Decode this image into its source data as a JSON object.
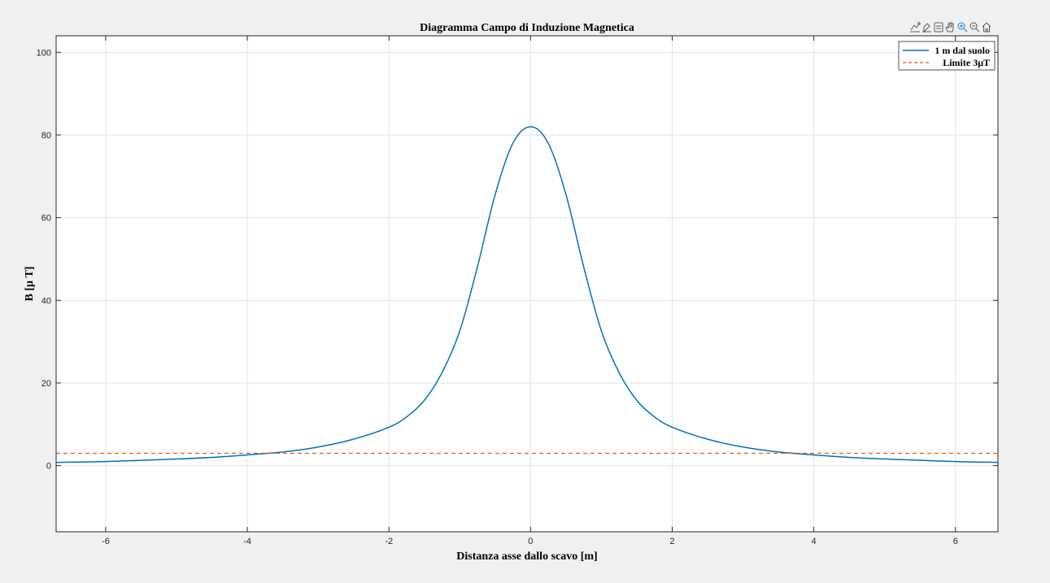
{
  "chart_data": {
    "type": "line",
    "title": "Diagramma Campo di Induzione Magnetica",
    "xlabel": "Distanza asse dallo scavo [m]",
    "ylabel": "B [μ T]",
    "xlim": [
      -6.7,
      6.6
    ],
    "ylim": [
      -16,
      104
    ],
    "xticks": [
      -6,
      -4,
      -2,
      0,
      2,
      4,
      6
    ],
    "yticks": [
      0,
      20,
      40,
      60,
      80,
      100
    ],
    "grid": true,
    "legend_position": "top-right",
    "series": [
      {
        "name": "1 m dal suolo",
        "style": "solid",
        "color": "#0072BD",
        "x": [
          -6.7,
          -6.0,
          -5.0,
          -4.5,
          -4.0,
          -3.5,
          -3.0,
          -2.5,
          -2.0,
          -1.75,
          -1.5,
          -1.25,
          -1.0,
          -0.75,
          -0.5,
          -0.25,
          0.0,
          0.25,
          0.5,
          0.75,
          1.0,
          1.25,
          1.5,
          1.75,
          2.0,
          2.5,
          3.0,
          3.5,
          4.0,
          4.5,
          5.0,
          6.0,
          6.6
        ],
        "y": [
          0.8,
          1.0,
          1.6,
          2.0,
          2.6,
          3.3,
          4.5,
          6.4,
          9.3,
          11.8,
          15.8,
          22.5,
          32.6,
          48.1,
          65.6,
          78.0,
          82.0,
          78.0,
          65.6,
          48.1,
          32.6,
          22.5,
          15.8,
          11.8,
          9.3,
          6.4,
          4.5,
          3.3,
          2.6,
          2.0,
          1.6,
          1.0,
          0.8
        ]
      },
      {
        "name": "Limite 3μT",
        "style": "dashed",
        "color": "#D95319",
        "x": [
          -6.7,
          6.6
        ],
        "y": [
          3,
          3
        ]
      }
    ]
  },
  "toolbar": {
    "icons": [
      "data-tips-icon",
      "brush-icon",
      "data-cursor-icon",
      "pan-icon",
      "zoom-in-icon",
      "zoom-out-icon",
      "home-icon"
    ]
  }
}
